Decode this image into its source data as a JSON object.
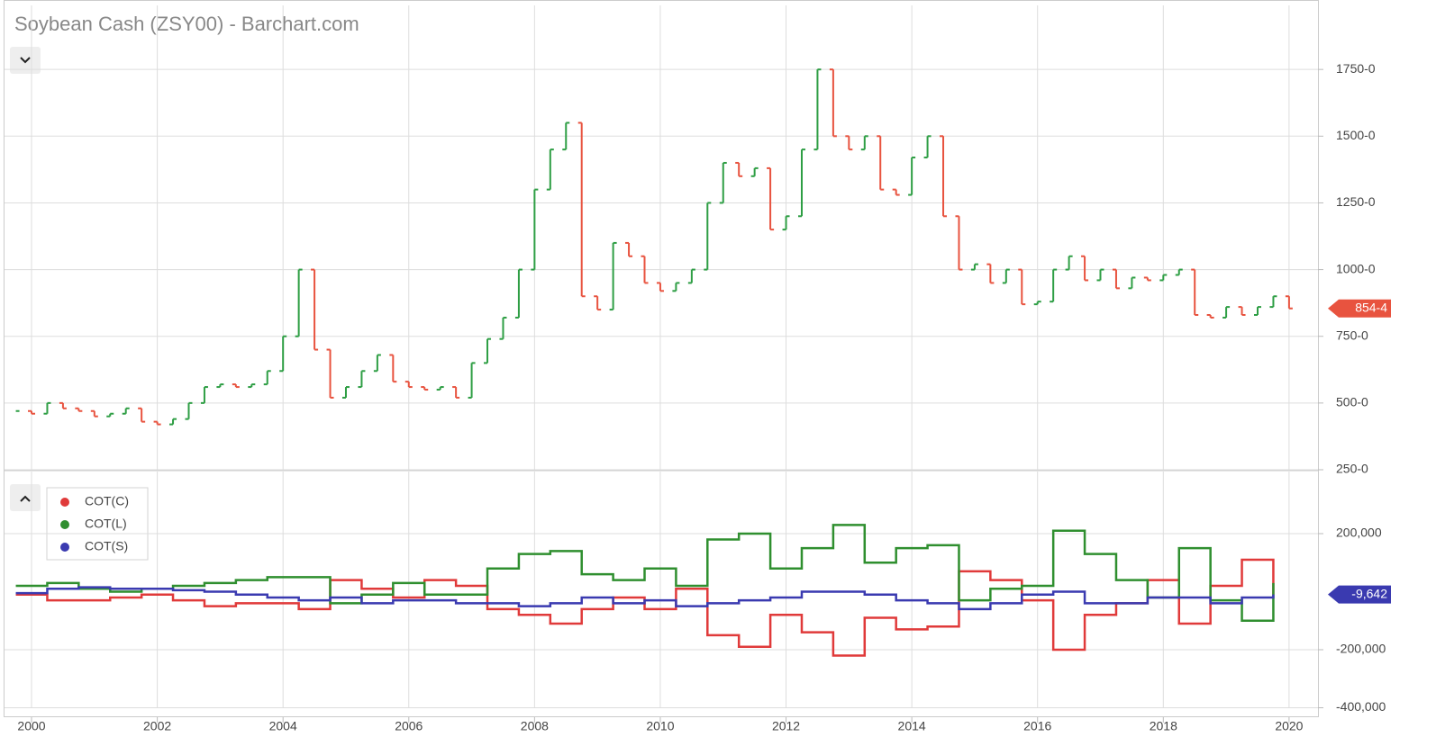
{
  "chart_data": [
    {
      "type": "stock",
      "title": "Soybean Cash (ZSY00) - Barchart.com",
      "x": [
        1999.75,
        2000,
        2000.25,
        2000.5,
        2000.75,
        2001,
        2001.25,
        2001.5,
        2001.75,
        2002,
        2002.25,
        2002.5,
        2002.75,
        2003,
        2003.25,
        2003.5,
        2003.75,
        2004,
        2004.25,
        2004.5,
        2004.75,
        2005,
        2005.25,
        2005.5,
        2005.75,
        2006,
        2006.25,
        2006.5,
        2006.75,
        2007,
        2007.25,
        2007.5,
        2007.75,
        2008,
        2008.25,
        2008.5,
        2008.75,
        2009,
        2009.25,
        2009.5,
        2009.75,
        2010,
        2010.25,
        2010.5,
        2010.75,
        2011,
        2011.25,
        2011.5,
        2011.75,
        2012,
        2012.25,
        2012.5,
        2012.75,
        2013,
        2013.25,
        2013.5,
        2013.75,
        2014,
        2014.25,
        2014.5,
        2014.75,
        2015,
        2015.25,
        2015.5,
        2015.75,
        2016,
        2016.25,
        2016.5,
        2016.75,
        2017,
        2017.25,
        2017.5,
        2017.75,
        2018,
        2018.25,
        2018.5,
        2018.75,
        2019,
        2019.25,
        2019.5,
        2019.75,
        2020
      ],
      "values": [
        470,
        460,
        500,
        480,
        470,
        450,
        460,
        480,
        430,
        420,
        440,
        500,
        560,
        570,
        560,
        570,
        620,
        750,
        1000,
        700,
        520,
        560,
        620,
        680,
        580,
        560,
        550,
        560,
        520,
        650,
        740,
        820,
        1000,
        1300,
        1450,
        1550,
        900,
        850,
        1100,
        1050,
        950,
        920,
        950,
        1000,
        1250,
        1400,
        1350,
        1380,
        1150,
        1200,
        1450,
        1750,
        1500,
        1450,
        1500,
        1300,
        1280,
        1420,
        1500,
        1200,
        1000,
        1020,
        950,
        1000,
        870,
        880,
        1000,
        1050,
        960,
        1000,
        930,
        970,
        960,
        980,
        1000,
        830,
        820,
        860,
        830,
        860,
        900,
        854.5
      ],
      "value_labels": [
        null,
        null,
        null,
        null,
        null,
        null,
        null,
        null,
        null,
        null,
        null,
        null,
        null,
        null,
        null,
        null,
        null,
        null,
        null,
        null,
        null,
        null,
        null,
        null,
        null,
        null,
        null,
        null,
        null,
        null,
        null,
        null,
        null,
        null,
        null,
        null,
        null,
        null,
        null,
        null,
        null,
        null,
        null,
        null,
        null,
        null,
        null,
        null,
        null,
        null,
        null,
        null,
        null,
        null,
        null,
        null,
        null,
        null,
        null,
        null,
        null,
        null,
        null,
        null,
        null,
        null,
        null,
        null,
        null,
        null,
        null,
        null,
        null,
        null,
        null,
        null,
        null,
        null,
        null,
        null,
        null,
        "854-4"
      ],
      "up_color": "#2e9e44",
      "down_color": "#e8533f",
      "label_color": "#e8533f",
      "xlim": [
        1999.57,
        2020.46
      ],
      "ylim": [
        250,
        1990
      ],
      "yticks": [
        {
          "value": 250,
          "label": "250-0"
        },
        {
          "value": 500,
          "label": "500-0"
        },
        {
          "value": 750,
          "label": "750-0"
        },
        {
          "value": 1000,
          "label": "1000-0"
        },
        {
          "value": 1250,
          "label": "1250-0"
        },
        {
          "value": 1500,
          "label": "1500-0"
        },
        {
          "value": 1750,
          "label": "1750-0"
        }
      ],
      "grid": true
    },
    {
      "type": "line",
      "step": true,
      "x": [
        1999.75,
        2000.25,
        2000.75,
        2001.25,
        2001.75,
        2002.25,
        2002.75,
        2003.25,
        2003.75,
        2004.25,
        2004.75,
        2005.25,
        2005.75,
        2006.25,
        2006.75,
        2007.25,
        2007.75,
        2008.25,
        2008.75,
        2009.25,
        2009.75,
        2010.25,
        2010.75,
        2011.25,
        2011.75,
        2012.25,
        2012.75,
        2013.25,
        2013.75,
        2014.25,
        2014.75,
        2015.25,
        2015.75,
        2016.25,
        2016.75,
        2017.25,
        2017.75,
        2018.25,
        2018.75,
        2019.25,
        2019.75
      ],
      "series": [
        {
          "name": "COT(C)",
          "color": "#e03a3a",
          "values": [
            -10000,
            -30000,
            -30000,
            -20000,
            -10000,
            -30000,
            -50000,
            -40000,
            -40000,
            -60000,
            40000,
            10000,
            -20000,
            40000,
            20000,
            -60000,
            -80000,
            -110000,
            -60000,
            -20000,
            -60000,
            10000,
            -150000,
            -190000,
            -80000,
            -140000,
            -220000,
            -90000,
            -130000,
            -120000,
            70000,
            40000,
            -30000,
            -200000,
            -80000,
            -40000,
            40000,
            -110000,
            20000,
            110000,
            -10000
          ]
        },
        {
          "name": "COT(L)",
          "color": "#2f8f2f",
          "values": [
            20000,
            30000,
            10000,
            0,
            10000,
            20000,
            30000,
            40000,
            50000,
            50000,
            -40000,
            -10000,
            30000,
            -10000,
            -10000,
            80000,
            130000,
            140000,
            60000,
            40000,
            80000,
            20000,
            180000,
            200000,
            80000,
            150000,
            230000,
            100000,
            150000,
            160000,
            -30000,
            10000,
            20000,
            210000,
            130000,
            40000,
            -20000,
            150000,
            -30000,
            -100000,
            30000
          ]
        },
        {
          "name": "COT(S)",
          "color": "#3a3ab0",
          "values": [
            -5000,
            10000,
            15000,
            10000,
            10000,
            5000,
            0,
            -10000,
            -20000,
            -30000,
            -20000,
            -40000,
            -30000,
            -30000,
            -40000,
            -40000,
            -50000,
            -40000,
            -20000,
            -40000,
            -30000,
            -50000,
            -40000,
            -30000,
            -20000,
            0,
            0,
            -10000,
            -30000,
            -40000,
            -60000,
            -40000,
            -10000,
            0,
            -40000,
            -40000,
            -20000,
            -20000,
            -40000,
            -20000,
            -9642
          ],
          "value_labels": [
            null,
            null,
            null,
            null,
            null,
            null,
            null,
            null,
            null,
            null,
            null,
            null,
            null,
            null,
            null,
            null,
            null,
            null,
            null,
            null,
            null,
            null,
            null,
            null,
            null,
            null,
            null,
            null,
            null,
            null,
            null,
            null,
            null,
            null,
            null,
            null,
            null,
            null,
            null,
            null,
            "-9,642"
          ]
        }
      ],
      "xlim": [
        1999.57,
        2020.46
      ],
      "ylim": [
        -400000,
        414000
      ],
      "xticks": [
        2000,
        2002,
        2004,
        2006,
        2008,
        2010,
        2012,
        2014,
        2016,
        2018,
        2020
      ],
      "yticks": [
        {
          "value": -400000,
          "label": "-400,000"
        },
        {
          "value": -200000,
          "label": "-200,000"
        },
        {
          "value": 200000,
          "label": "200,000"
        }
      ],
      "grid": true,
      "legend": "top-left"
    }
  ]
}
